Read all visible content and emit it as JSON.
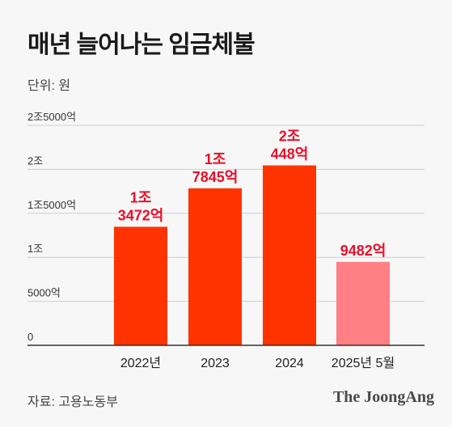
{
  "title": "매년 늘어나는 임금체불",
  "unit_label": "단위: 원",
  "source": "자료: 고용노동부",
  "brand": "The JoongAng",
  "colors": {
    "bar": "#ff3300",
    "bar_highlight": "#ff7f84",
    "label": "#e8102a",
    "grid": "#cfcfcf",
    "axis": "#333333"
  },
  "chart_data": {
    "type": "bar",
    "categories": [
      "2022년",
      "2023",
      "2024",
      "2025년 5월"
    ],
    "values": [
      13472,
      17845,
      20448,
      9482
    ],
    "value_labels": [
      [
        "1조",
        "3472억"
      ],
      [
        "1조",
        "7845억"
      ],
      [
        "2조",
        "448억"
      ],
      [
        "9482억"
      ]
    ],
    "ylim": [
      0,
      25000
    ],
    "yticks": [
      0,
      5000,
      10000,
      15000,
      20000,
      25000
    ],
    "ytick_labels": [
      "0",
      "5000억",
      "1조",
      "1조5000억",
      "2조",
      "2조5000억"
    ],
    "xlabel": "",
    "ylabel": "",
    "grid": true
  }
}
